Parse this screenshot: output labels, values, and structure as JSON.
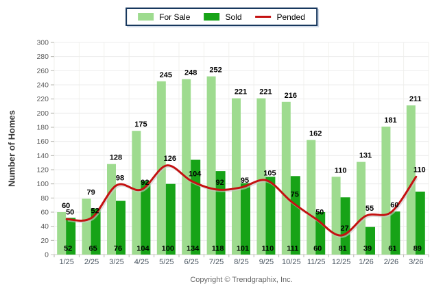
{
  "legend": {
    "items": [
      {
        "label": "For Sale",
        "swatch": "bar",
        "color": "#9EDB8F"
      },
      {
        "label": "Sold",
        "swatch": "bar",
        "color": "#17A317"
      },
      {
        "label": "Pended",
        "swatch": "line",
        "color": "#C41111"
      }
    ],
    "border_color": "#17375D"
  },
  "y_axis": {
    "title": "Number of Homes",
    "min": 0,
    "max": 300,
    "step": 20
  },
  "footer": {
    "copyright": "Copyright © Trendgraphix, Inc."
  },
  "chart_data": {
    "type": "bar",
    "title": "",
    "xlabel": "",
    "ylabel": "Number of Homes",
    "ylim": [
      0,
      300
    ],
    "y_ticks": [
      0,
      20,
      40,
      60,
      80,
      100,
      120,
      140,
      160,
      180,
      200,
      220,
      240,
      260,
      280,
      300
    ],
    "grid": true,
    "legend_position": "top-center",
    "categories": [
      "1/25",
      "2/25",
      "3/25",
      "4/25",
      "5/25",
      "6/25",
      "7/25",
      "8/25",
      "9/25",
      "10/25",
      "11/25",
      "12/25",
      "1/26",
      "2/26",
      "3/26"
    ],
    "series": [
      {
        "name": "For Sale",
        "type": "bar",
        "color": "#9EDB8F",
        "values": [
          60,
          79,
          128,
          175,
          245,
          248,
          252,
          221,
          221,
          216,
          162,
          110,
          131,
          181,
          211
        ]
      },
      {
        "name": "Sold",
        "type": "bar",
        "color": "#17A317",
        "values": [
          52,
          65,
          76,
          104,
          100,
          134,
          118,
          101,
          110,
          111,
          60,
          81,
          39,
          61,
          89
        ]
      },
      {
        "name": "Pended",
        "type": "line",
        "color": "#C41111",
        "values": [
          50,
          52,
          98,
          92,
          126,
          104,
          92,
          95,
          105,
          75,
          50,
          27,
          55,
          60,
          110
        ]
      }
    ],
    "colors": {
      "gridline": "#ECECEC",
      "vertical_gridline": "#F1F1EC",
      "axis_line": "#C8C8C2",
      "tick": "#B5B5AE",
      "y_tick_label": "#5E5E5E",
      "x_tick_label": "#46525E",
      "value_label": "#000000",
      "line_shadow": "#C9C9C9"
    }
  }
}
